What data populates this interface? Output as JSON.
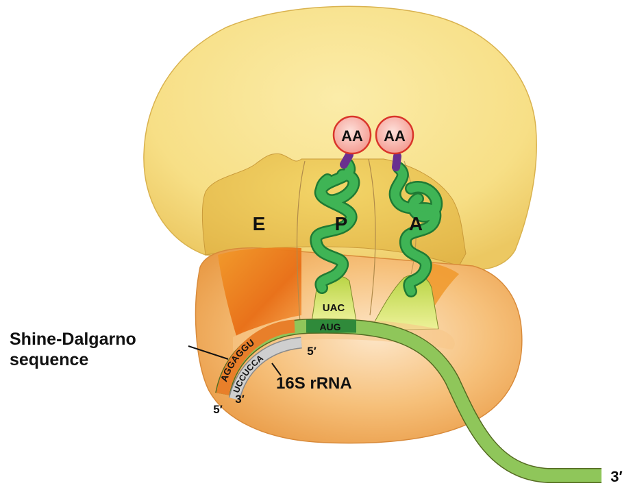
{
  "labels": {
    "aa_p": "AA",
    "aa_a": "AA",
    "site_e": "E",
    "site_p": "P",
    "site_a": "A",
    "anticodon": "UAC",
    "codon": "AUG",
    "sd_mrna": "AGGAGGU",
    "sd_rrna": "UCCUCCA",
    "mrna_5prime": "5′",
    "rrna_3prime": "3′",
    "codon_5prime": "5′",
    "mrna_3prime": "3′",
    "shine_dalgarno_line1": "Shine-Dalgarno",
    "shine_dalgarno_line2": "sequence",
    "rrna_label": "16S rRNA"
  },
  "colors": {
    "large_subunit": "#f7e08a",
    "small_subunit": "#f3b460",
    "trna": "#2f9e46",
    "mrna": "#8fc65a",
    "amino_acid": "#f7a8a0",
    "amino_acid_ring": "#d9352a",
    "linker": "#6a2f8f",
    "sd_mrna": "#e87f2a",
    "sd_rrna": "#c8c8c8"
  }
}
